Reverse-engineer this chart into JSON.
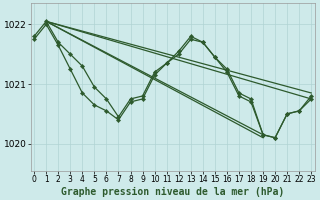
{
  "title": "Graphe pression niveau de la mer (hPa)",
  "bg_color": "#ceeaea",
  "grid_color": "#b0d4d4",
  "line_color": "#2d5a2d",
  "ylim": [
    1019.55,
    1022.35
  ],
  "yticks": [
    1020,
    1021,
    1022
  ],
  "xlim": [
    -0.3,
    23.3
  ],
  "xticks": [
    0,
    1,
    2,
    3,
    4,
    5,
    6,
    7,
    8,
    9,
    10,
    11,
    12,
    13,
    14,
    15,
    16,
    17,
    18,
    19,
    20,
    21,
    22,
    23
  ],
  "series_jagged": [
    1021.8,
    1022.05,
    1021.7,
    1021.5,
    1021.3,
    1020.95,
    1020.75,
    1020.45,
    1020.75,
    1020.8,
    1021.2,
    1021.35,
    1021.55,
    1021.8,
    1021.7,
    1021.45,
    1021.2,
    1020.8,
    1020.7,
    1020.15,
    1020.1,
    1020.5,
    1020.55,
    1020.75
  ],
  "straight_lines": [
    [
      [
        1,
        1022.05
      ],
      [
        19,
        1020.15
      ]
    ],
    [
      [
        1,
        1022.05
      ],
      [
        19,
        1020.1
      ]
    ],
    [
      [
        1,
        1022.05
      ],
      [
        23,
        1020.75
      ]
    ],
    [
      [
        1,
        1022.05
      ],
      [
        23,
        1020.85
      ]
    ]
  ],
  "series_curved_markers": [
    1021.75,
    1022.0,
    1021.65,
    1021.25,
    1020.85,
    1020.65,
    1020.55,
    1020.4,
    1020.7,
    1020.75,
    1021.15,
    1021.35,
    1021.5,
    1021.75,
    1021.7,
    1021.45,
    1021.25,
    1020.85,
    1020.75,
    1020.15,
    1020.1,
    1020.5,
    1020.55,
    1020.8
  ],
  "xlabel_fontsize": 7.0,
  "ytick_fontsize": 6.5,
  "xtick_fontsize": 5.5
}
